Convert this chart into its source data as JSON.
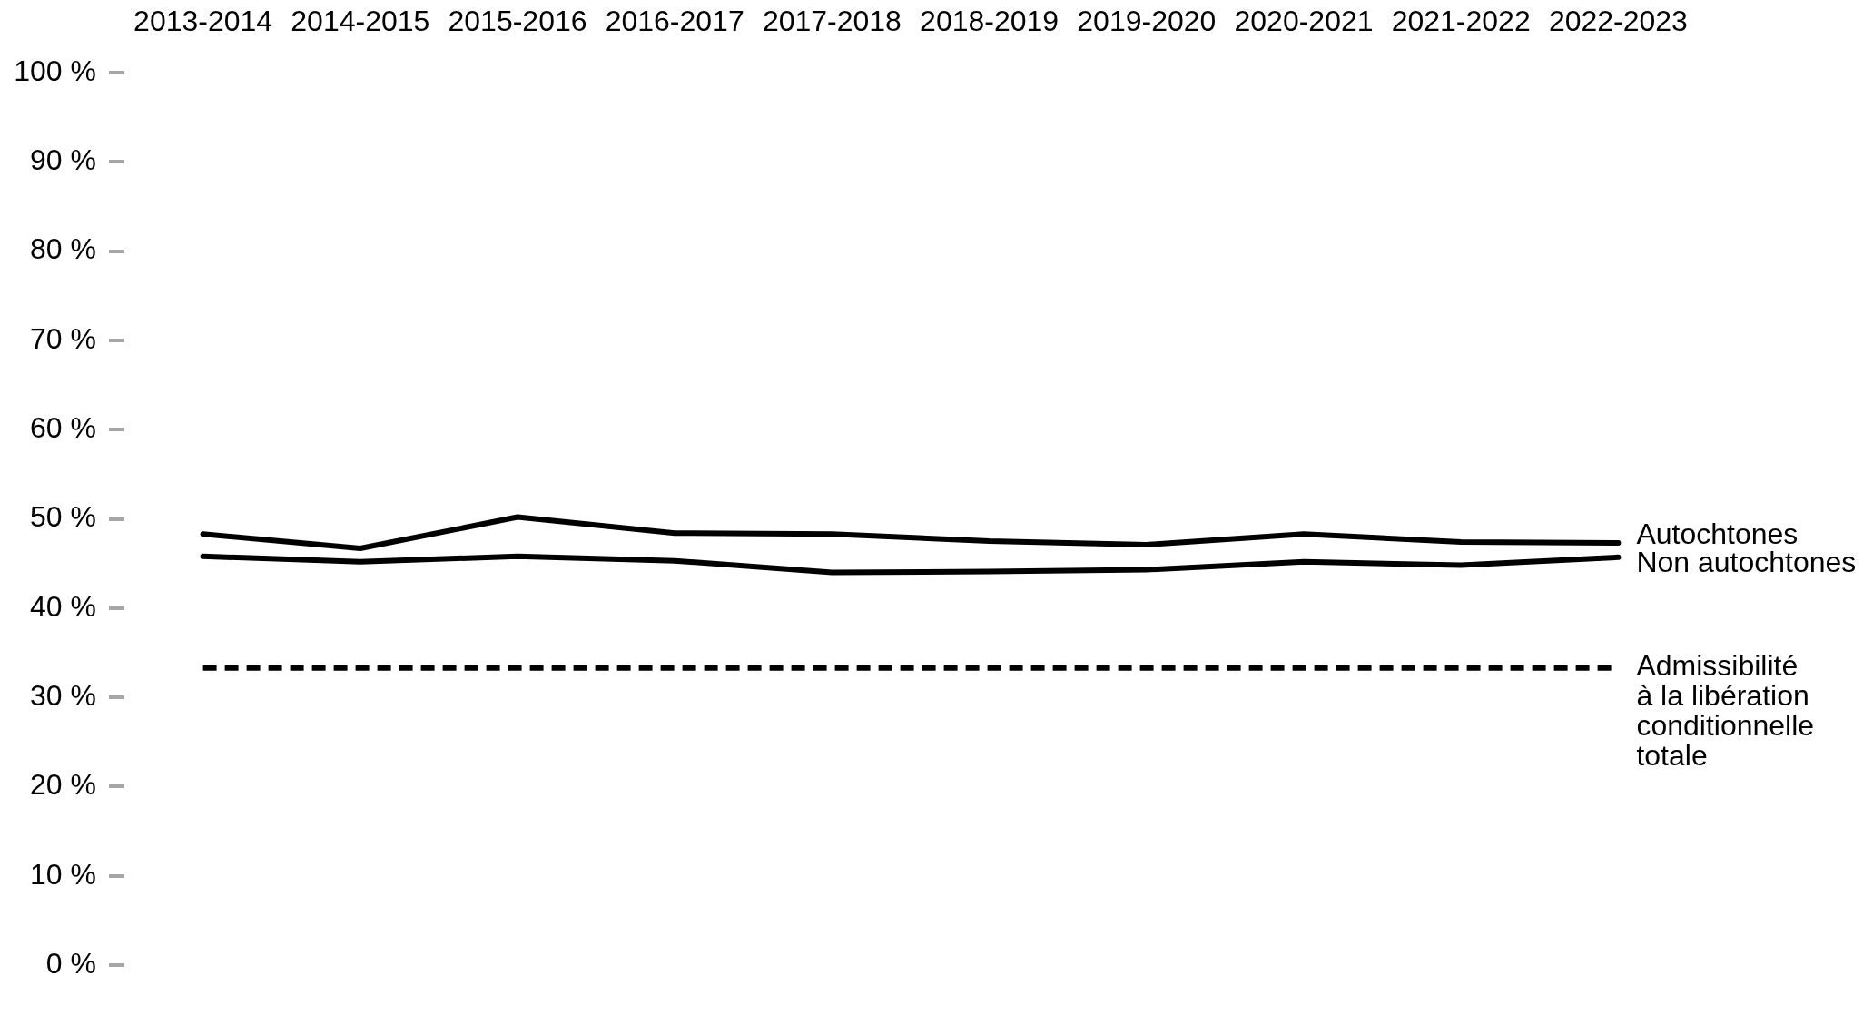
{
  "chart_data": {
    "type": "line",
    "categories": [
      "2013-2014",
      "2014-2015",
      "2015-2016",
      "2016-2017",
      "2017-2018",
      "2018-2019",
      "2019-2020",
      "2020-2021",
      "2021-2022",
      "2022-2023"
    ],
    "series": [
      {
        "name": "Autochtones",
        "color": "#000000",
        "values": [
          48.3,
          46.7,
          50.2,
          48.4,
          48.3,
          47.5,
          47.1,
          48.3,
          47.4,
          47.3
        ]
      },
      {
        "name": "Non autochtones",
        "color": "#000000",
        "values": [
          45.8,
          45.2,
          45.8,
          45.3,
          44.0,
          44.1,
          44.3,
          45.2,
          44.8,
          45.7
        ]
      }
    ],
    "ylim": [
      0,
      100
    ],
    "yticks": [
      {
        "value": 0,
        "label": "0 %"
      },
      {
        "value": 10,
        "label": "10 %"
      },
      {
        "value": 20,
        "label": "20 %"
      },
      {
        "value": 30,
        "label": "30 %"
      },
      {
        "value": 40,
        "label": "40 %"
      },
      {
        "value": 50,
        "label": "50 %"
      },
      {
        "value": 60,
        "label": "60 %"
      },
      {
        "value": 70,
        "label": "70 %"
      },
      {
        "value": 80,
        "label": "80 %"
      },
      {
        "value": 90,
        "label": "90 %"
      },
      {
        "value": 100,
        "label": "100 %"
      }
    ],
    "ref_lines": [
      {
        "axis": "y",
        "value": 33.3,
        "label": "Admissibilité\nà la libération\nconditionnelle\ntotale",
        "color": "#000000",
        "line_style": "dashed"
      }
    ],
    "grid": false,
    "legend": false,
    "marker": "none",
    "line_style": "solid"
  }
}
